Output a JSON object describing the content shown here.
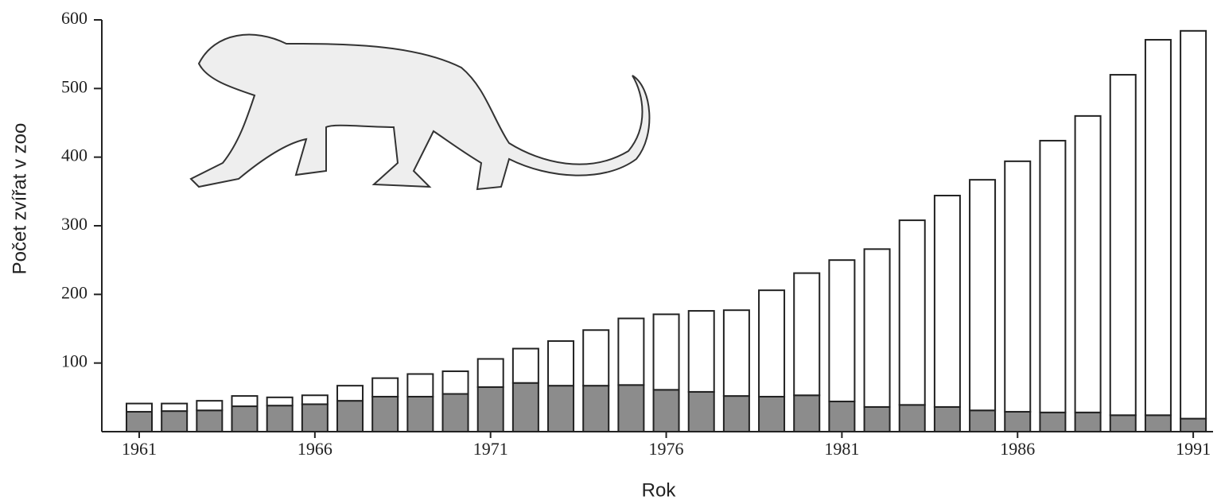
{
  "chart_data": {
    "type": "stacked_bar",
    "x_label": "Rok",
    "y_label": "Počet zvířat v zoo",
    "categories": [
      "1961",
      null,
      null,
      null,
      null,
      "1966",
      null,
      null,
      null,
      null,
      "1971",
      null,
      null,
      null,
      null,
      "1976",
      null,
      null,
      null,
      null,
      "1981",
      null,
      null,
      null,
      null,
      "1986",
      null,
      null,
      null,
      null,
      "1991"
    ],
    "series": [
      {
        "color": "#8c8c8c",
        "values": [
          29,
          30,
          31,
          37,
          38,
          40,
          45,
          51,
          51,
          55,
          65,
          71,
          67,
          67,
          68,
          61,
          58,
          52,
          51,
          53,
          44,
          36,
          39,
          36,
          31,
          29,
          28,
          28,
          24,
          24,
          19
        ]
      },
      {
        "color": "#ffffff",
        "values": [
          12,
          11,
          14,
          15,
          12,
          13,
          22,
          27,
          33,
          33,
          41,
          50,
          65,
          81,
          97,
          110,
          118,
          125,
          155,
          178,
          206,
          230,
          269,
          308,
          336,
          365,
          396,
          432,
          496,
          547,
          565
        ]
      }
    ],
    "ylim": [
      0,
      600
    ],
    "yticks": [
      100,
      200,
      300,
      400,
      500,
      600
    ],
    "grid": false
  }
}
